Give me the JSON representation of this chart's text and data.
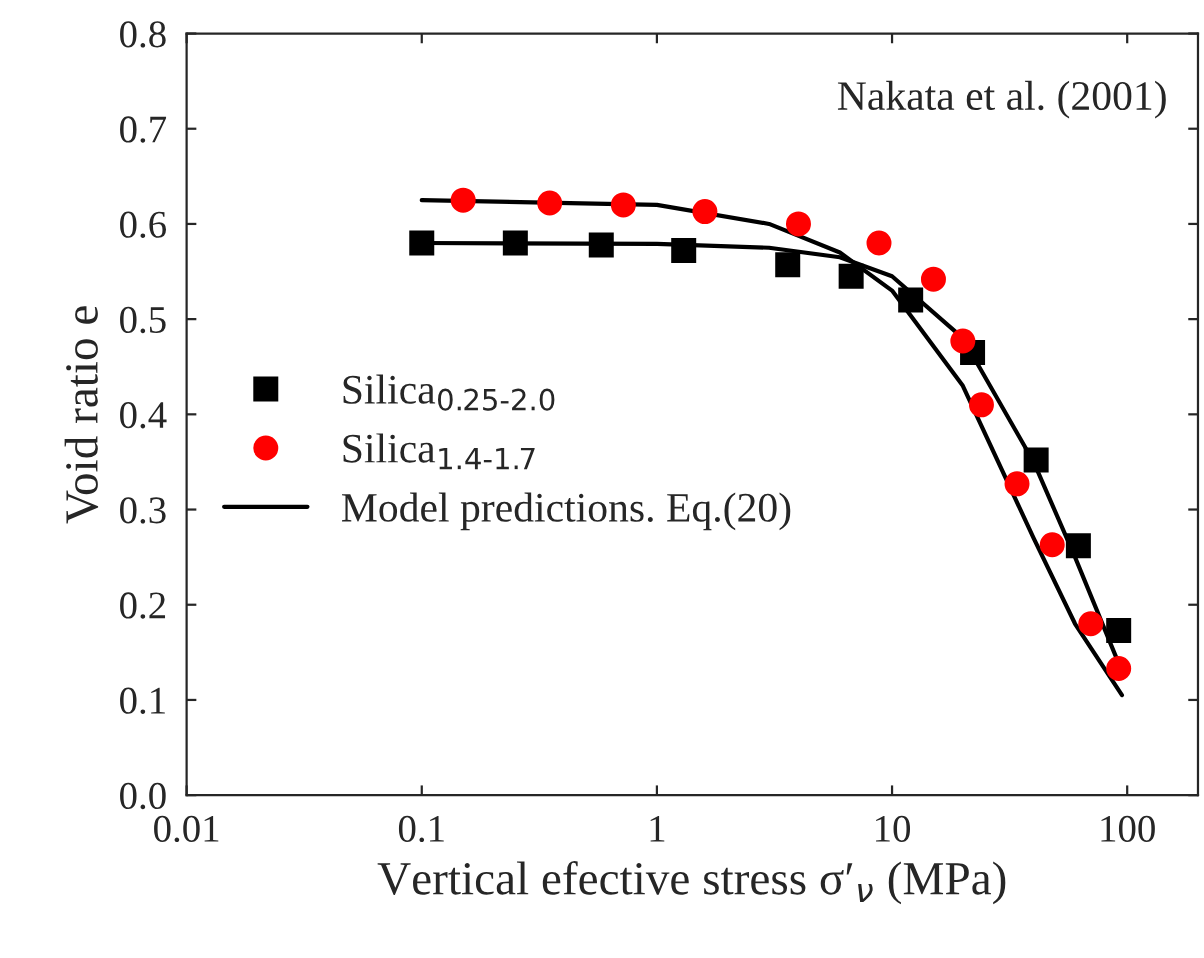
{
  "chart_data": {
    "type": "scatter",
    "xlabel": "Vertical efective stress σ′$_{ν}$ (MPa)",
    "ylabel": "Void ratio e",
    "annotations": [
      "Nakata et al. (2001)"
    ],
    "log": "x",
    "xlim": [
      0.01,
      200
    ],
    "xticks": [
      0.01,
      0.1,
      1,
      10,
      100
    ],
    "ylim": [
      0,
      0.8
    ],
    "yticks": [
      {
        "value": 0,
        "label": "0.0"
      },
      0.1,
      0.2,
      0.3,
      0.4,
      0.5,
      0.6,
      0.7,
      0.8
    ],
    "grid": false,
    "legend": "left",
    "series": [
      {
        "name": "Silica$_{0.25-2.0}$",
        "marker": "square",
        "color": "#000000",
        "x": [
          0.1,
          0.25,
          0.58,
          1.3,
          3.6,
          6.7,
          12,
          22,
          41,
          62,
          92
        ],
        "values": [
          0.58,
          0.58,
          0.578,
          0.572,
          0.557,
          0.545,
          0.52,
          0.465,
          0.352,
          0.262,
          0.173
        ]
      },
      {
        "name": "Silica$_{1.4-1.7}$",
        "marker": "circle",
        "color": "#ff0000",
        "x": [
          0.15,
          0.35,
          0.72,
          1.6,
          4,
          8.8,
          15,
          20,
          24,
          34,
          48,
          70,
          92
        ],
        "values": [
          0.625,
          0.622,
          0.62,
          0.613,
          0.6,
          0.58,
          0.542,
          0.477,
          0.41,
          0.327,
          0.263,
          0.18,
          0.133
        ]
      },
      {
        "name": "Model predictions. Eq.(20)",
        "type": "line",
        "line_style": "solid",
        "color": "#000000",
        "x": [
          0.1,
          1,
          3,
          6,
          10,
          20,
          40,
          60,
          95
        ],
        "values": [
          0.58,
          0.579,
          0.575,
          0.565,
          0.545,
          0.48,
          0.35,
          0.25,
          0.13
        ]
      },
      {
        "type": "line",
        "line_style": "solid",
        "color": "#000000",
        "x": [
          0.1,
          1,
          3,
          6,
          10,
          20,
          40,
          60,
          95
        ],
        "values": [
          0.625,
          0.62,
          0.6,
          0.57,
          0.53,
          0.43,
          0.27,
          0.18,
          0.105
        ]
      }
    ]
  }
}
